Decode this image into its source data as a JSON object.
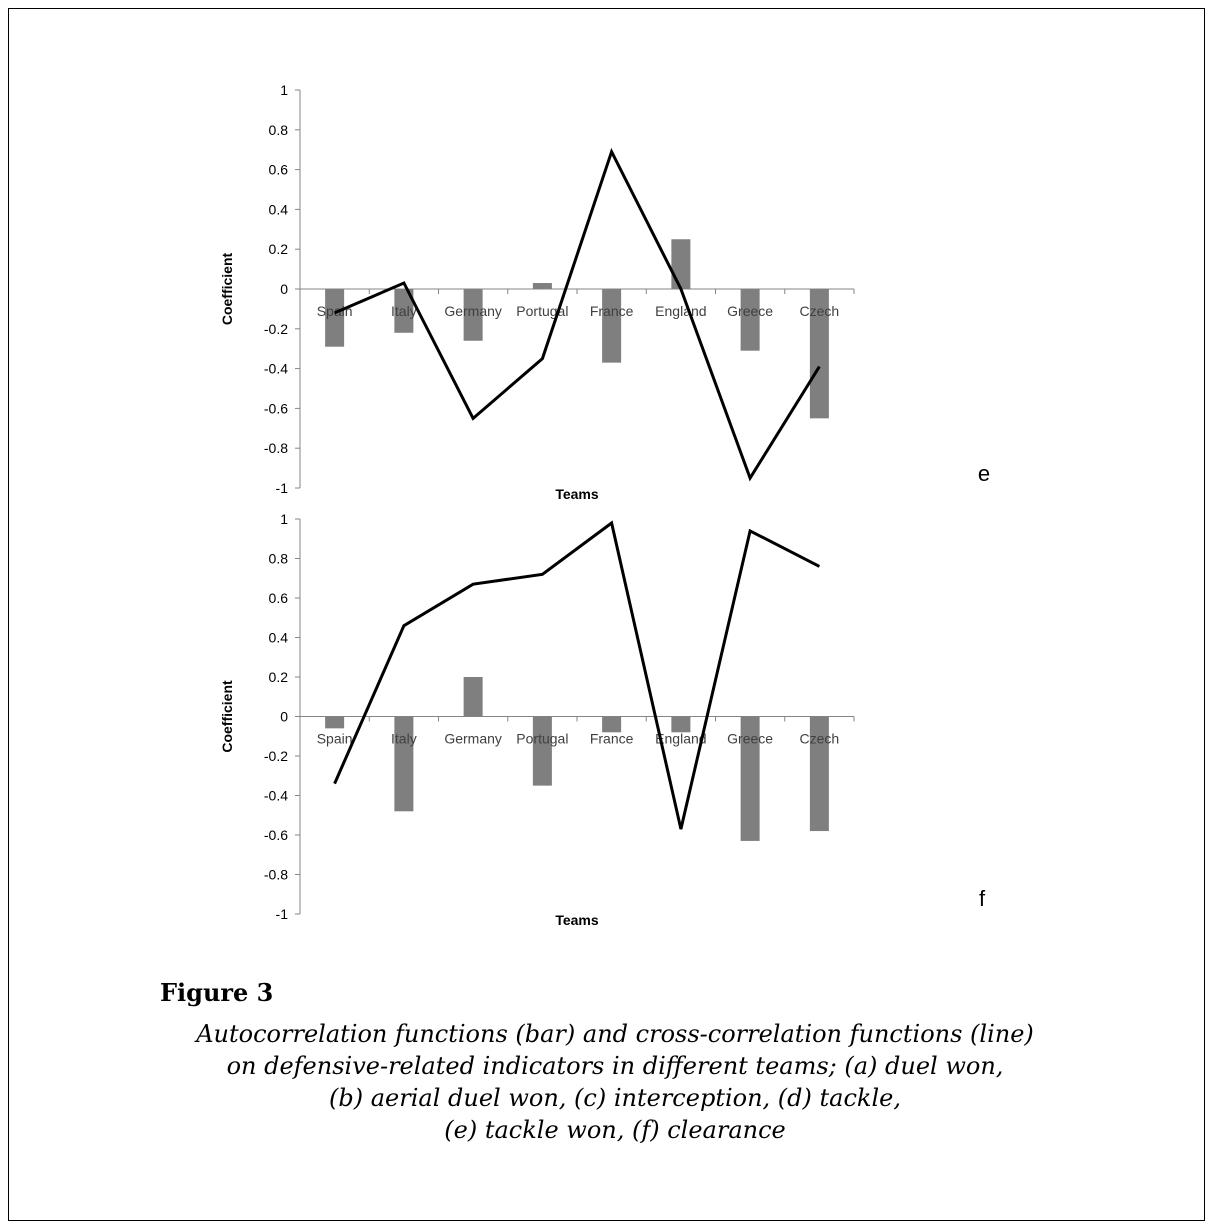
{
  "chart_data": [
    {
      "type": "bar+line",
      "panel_label": "e",
      "categories": [
        "Spain",
        "Italy",
        "Germany",
        "Portugal",
        "France",
        "England",
        "Greece",
        "Czech"
      ],
      "series": [
        {
          "type": "bar",
          "color": "#7f7f7f",
          "values": [
            -0.29,
            -0.22,
            -0.26,
            0.03,
            -0.37,
            0.25,
            -0.31,
            -0.65
          ]
        },
        {
          "type": "line",
          "color": "#000000",
          "values": [
            -0.12,
            0.03,
            -0.65,
            -0.35,
            0.69,
            0.0,
            -0.95,
            -0.39
          ]
        }
      ],
      "xlabel": "Teams",
      "ylabel": "Coefficient",
      "ylim": [
        -1,
        1
      ],
      "yticks": [
        "1",
        "0.8",
        "0.6",
        "0.4",
        "0.2",
        "0",
        "-0.2",
        "-0.4",
        "-0.6",
        "-0.8",
        "-1"
      ],
      "grid": false,
      "legend": "none"
    },
    {
      "type": "bar+line",
      "panel_label": "f",
      "categories": [
        "Spain",
        "Italy",
        "Germany",
        "Portugal",
        "France",
        "England",
        "Greece",
        "Czech"
      ],
      "series": [
        {
          "type": "bar",
          "color": "#7f7f7f",
          "values": [
            -0.06,
            -0.48,
            0.2,
            -0.35,
            -0.08,
            -0.08,
            -0.63,
            -0.58
          ]
        },
        {
          "type": "line",
          "color": "#000000",
          "values": [
            -0.34,
            0.46,
            0.67,
            0.72,
            0.98,
            -0.57,
            0.94,
            0.76
          ]
        }
      ],
      "xlabel": "Teams",
      "ylabel": "Coefficient",
      "ylim": [
        -1,
        1
      ],
      "yticks": [
        "1",
        "0.8",
        "0.6",
        "0.4",
        "0.2",
        "0",
        "-0.2",
        "-0.4",
        "-0.6",
        "-0.8",
        "-1"
      ],
      "grid": false,
      "legend": "none"
    }
  ],
  "figure": {
    "title": "Figure 3",
    "caption_lines": [
      "Autocorrelation functions (bar) and cross-correlation functions (line)",
      "on defensive-related indicators in different teams; (a) duel won,",
      "(b) aerial duel won, (c) interception, (d) tackle,",
      "(e) tackle won, (f) clearance"
    ]
  }
}
